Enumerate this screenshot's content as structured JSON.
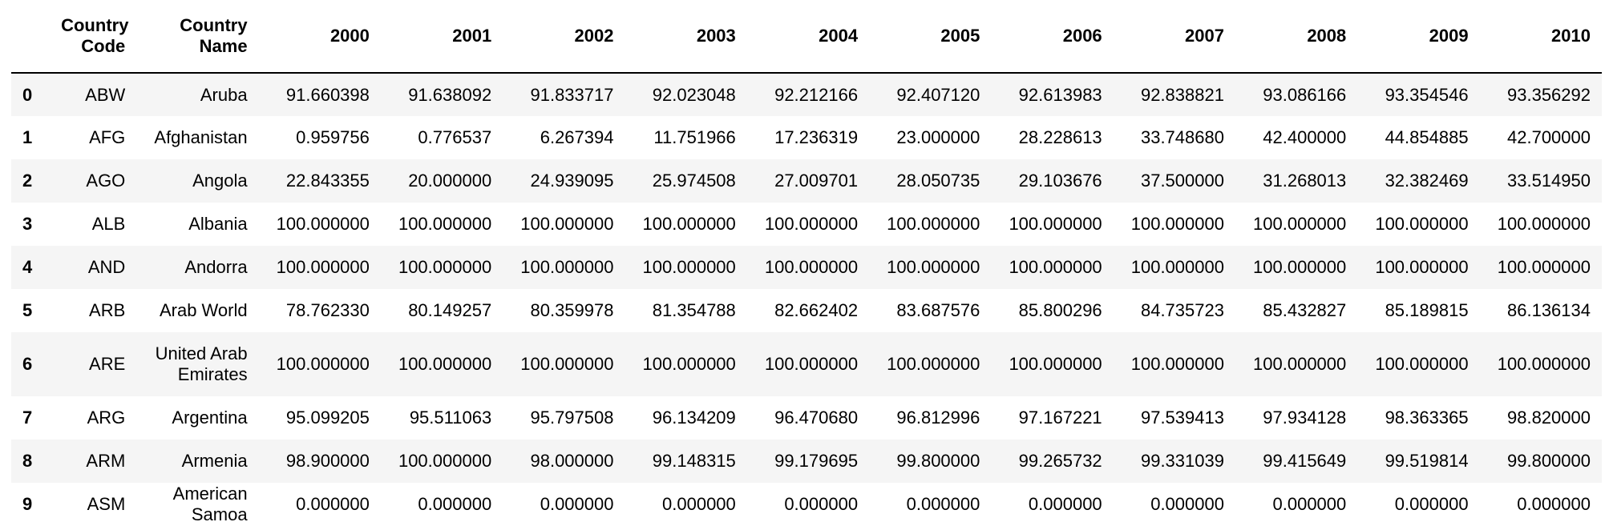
{
  "table": {
    "columns": [
      "",
      "Country Code",
      "Country Name",
      "2000",
      "2001",
      "2002",
      "2003",
      "2004",
      "2005",
      "2006",
      "2007",
      "2008",
      "2009",
      "2010"
    ],
    "rows": [
      {
        "index": "0",
        "code": "ABW",
        "name": "Aruba",
        "values": [
          "91.660398",
          "91.638092",
          "91.833717",
          "92.023048",
          "92.212166",
          "92.407120",
          "92.613983",
          "92.838821",
          "93.086166",
          "93.354546",
          "93.356292"
        ]
      },
      {
        "index": "1",
        "code": "AFG",
        "name": "Afghanistan",
        "values": [
          "0.959756",
          "0.776537",
          "6.267394",
          "11.751966",
          "17.236319",
          "23.000000",
          "28.228613",
          "33.748680",
          "42.400000",
          "44.854885",
          "42.700000"
        ]
      },
      {
        "index": "2",
        "code": "AGO",
        "name": "Angola",
        "values": [
          "22.843355",
          "20.000000",
          "24.939095",
          "25.974508",
          "27.009701",
          "28.050735",
          "29.103676",
          "37.500000",
          "31.268013",
          "32.382469",
          "33.514950"
        ]
      },
      {
        "index": "3",
        "code": "ALB",
        "name": "Albania",
        "values": [
          "100.000000",
          "100.000000",
          "100.000000",
          "100.000000",
          "100.000000",
          "100.000000",
          "100.000000",
          "100.000000",
          "100.000000",
          "100.000000",
          "100.000000"
        ]
      },
      {
        "index": "4",
        "code": "AND",
        "name": "Andorra",
        "values": [
          "100.000000",
          "100.000000",
          "100.000000",
          "100.000000",
          "100.000000",
          "100.000000",
          "100.000000",
          "100.000000",
          "100.000000",
          "100.000000",
          "100.000000"
        ]
      },
      {
        "index": "5",
        "code": "ARB",
        "name": "Arab World",
        "values": [
          "78.762330",
          "80.149257",
          "80.359978",
          "81.354788",
          "82.662402",
          "83.687576",
          "85.800296",
          "84.735723",
          "85.432827",
          "85.189815",
          "86.136134"
        ]
      },
      {
        "index": "6",
        "code": "ARE",
        "name": "United Arab Emirates",
        "values": [
          "100.000000",
          "100.000000",
          "100.000000",
          "100.000000",
          "100.000000",
          "100.000000",
          "100.000000",
          "100.000000",
          "100.000000",
          "100.000000",
          "100.000000"
        ]
      },
      {
        "index": "7",
        "code": "ARG",
        "name": "Argentina",
        "values": [
          "95.099205",
          "95.511063",
          "95.797508",
          "96.134209",
          "96.470680",
          "96.812996",
          "97.167221",
          "97.539413",
          "97.934128",
          "98.363365",
          "98.820000"
        ]
      },
      {
        "index": "8",
        "code": "ARM",
        "name": "Armenia",
        "values": [
          "98.900000",
          "100.000000",
          "98.000000",
          "99.148315",
          "99.179695",
          "99.800000",
          "99.265732",
          "99.331039",
          "99.415649",
          "99.519814",
          "99.800000"
        ]
      },
      {
        "index": "9",
        "code": "ASM",
        "name": "American Samoa",
        "values": [
          "0.000000",
          "0.000000",
          "0.000000",
          "0.000000",
          "0.000000",
          "0.000000",
          "0.000000",
          "0.000000",
          "0.000000",
          "0.000000",
          "0.000000"
        ]
      }
    ]
  }
}
